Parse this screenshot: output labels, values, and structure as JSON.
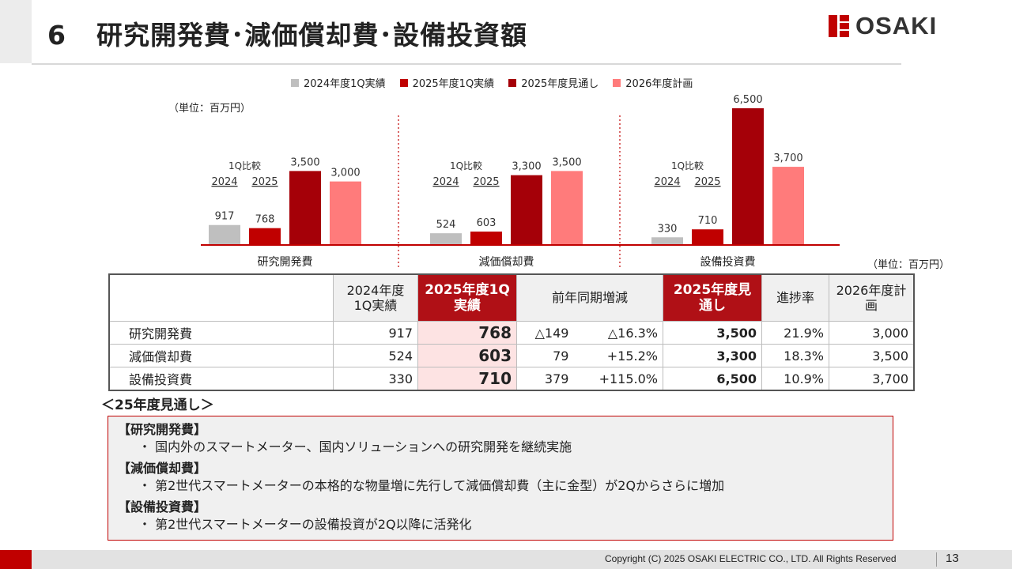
{
  "header": {
    "section_number": "6",
    "title": "研究開発費･減価償却費･設備投資額",
    "logo_text": "OSAKI"
  },
  "legend": [
    "2024年度1Q実績",
    "2025年度1Q実績",
    "2025年度見通し",
    "2026年度計画"
  ],
  "unit_label": "（単位：百万円）",
  "chart_data": {
    "type": "bar",
    "categories": [
      "研究開発費",
      "減価償却費",
      "設備投資費"
    ],
    "series": [
      {
        "name": "2024年度1Q実績",
        "values": [
          917,
          524,
          330
        ],
        "color": "#bfbfbf"
      },
      {
        "name": "2025年度1Q実績",
        "values": [
          768,
          603,
          710
        ],
        "color": "#c00000"
      },
      {
        "name": "2025年度見通し",
        "values": [
          3500,
          3300,
          6500
        ],
        "color": "#a50008"
      },
      {
        "name": "2026年度計画",
        "values": [
          3000,
          3500,
          3700
        ],
        "color": "#ff7b7b"
      }
    ],
    "annotation": "1Q比較",
    "annotation_years": [
      "2024",
      "2025"
    ],
    "ylim": [
      0,
      6500
    ]
  },
  "table": {
    "headers": [
      "2024年度1Q実績",
      "2025年度1Q実績",
      "前年同期増減",
      "2025年度見通し",
      "進捗率",
      "2026年度計画"
    ],
    "rows": [
      {
        "label": "研究開発費",
        "fy24q1": "917",
        "fy25q1": "768",
        "diff": "△149",
        "diff_pct": "△16.3%",
        "fy25f": "3,500",
        "progress": "21.9%",
        "fy26": "3,000"
      },
      {
        "label": "減価償却費",
        "fy24q1": "524",
        "fy25q1": "603",
        "diff": "79",
        "diff_pct": "+15.2%",
        "fy25f": "3,300",
        "progress": "18.3%",
        "fy26": "3,500"
      },
      {
        "label": "設備投資費",
        "fy24q1": "330",
        "fy25q1": "710",
        "diff": "379",
        "diff_pct": "+115.0%",
        "fy25f": "6,500",
        "progress": "10.9%",
        "fy26": "3,700"
      }
    ]
  },
  "forecast": {
    "title": "＜25年度見通し＞",
    "items": [
      {
        "heading": "【研究開発費】",
        "body": "・ 国内外のスマートメーター、国内ソリューションへの研究開発を継続実施"
      },
      {
        "heading": "【減価償却費】",
        "body": "・ 第2世代スマートメーターの本格的な物量増に先行して減価償却費（主に金型）が2Qからさらに増加"
      },
      {
        "heading": "【設備投資費】",
        "body": "・ 第2世代スマートメーターの設備投資が2Q以降に活発化"
      }
    ]
  },
  "footer": {
    "copyright": "Copyright (C) 2025 OSAKI ELECTRIC CO., LTD. All Rights Reserved",
    "page": "13"
  }
}
